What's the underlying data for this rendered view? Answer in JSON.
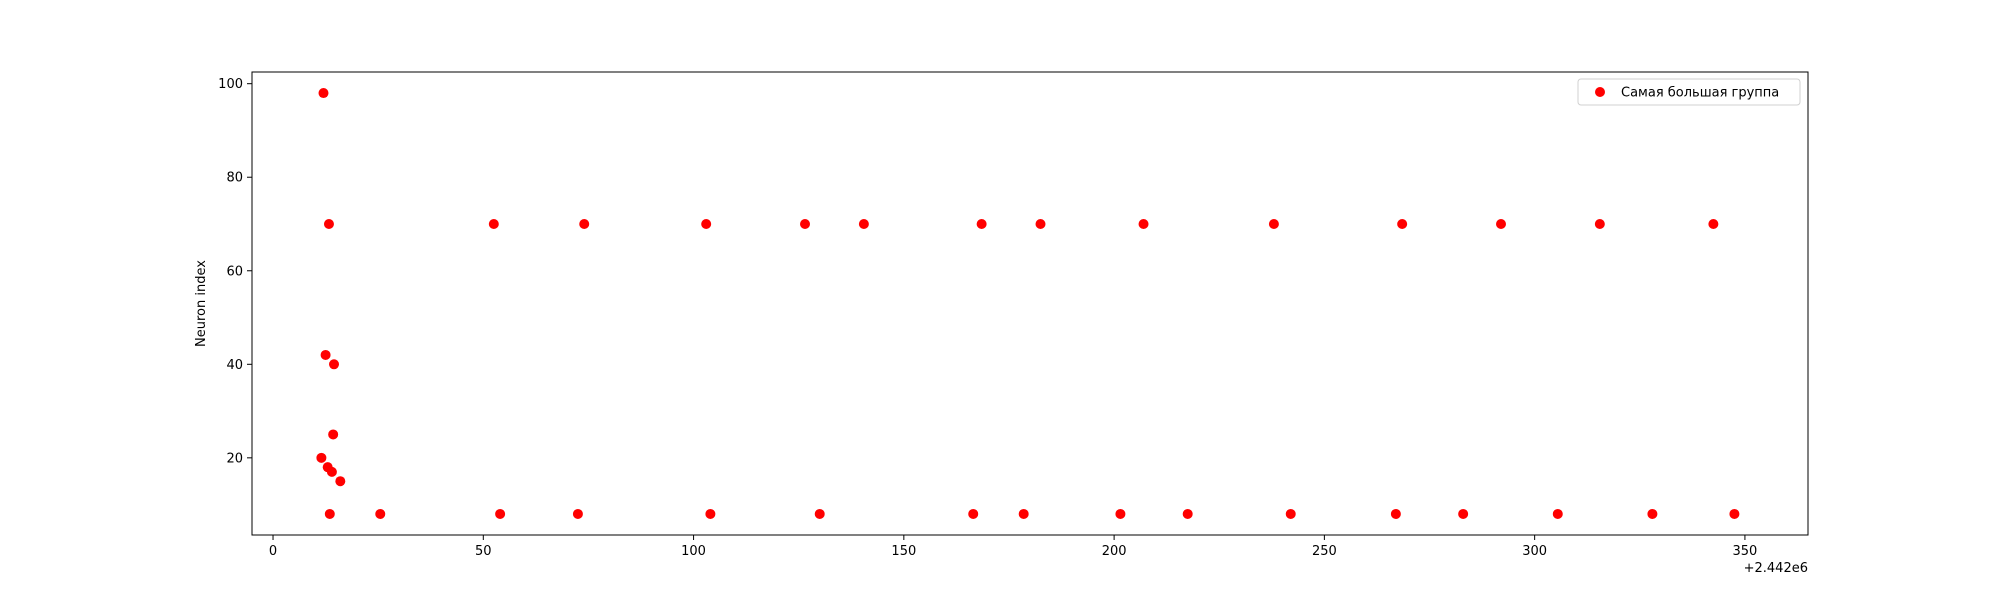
{
  "chart_data": {
    "type": "scatter",
    "title": "",
    "xlabel": "",
    "ylabel": "Neuron index",
    "x_offset_label": "+2.442e6",
    "xlim": [
      -5,
      365
    ],
    "ylim": [
      3.5,
      102.5
    ],
    "xticks": [
      0,
      50,
      100,
      150,
      200,
      250,
      300,
      350
    ],
    "yticks": [
      20,
      40,
      60,
      80,
      100
    ],
    "grid": false,
    "legend_position": "top-right",
    "series": [
      {
        "name": "Самая большая группа",
        "color": "#ff0000",
        "x": [
          12,
          13.3,
          52.5,
          74,
          103,
          126.5,
          140.5,
          168.5,
          182.5,
          207,
          238,
          268.5,
          292,
          315.5,
          342.5,
          12.5,
          14.5,
          14.3,
          11.5,
          13,
          14,
          16,
          13.5,
          25.5,
          54,
          72.5,
          104,
          130,
          166.5,
          178.5,
          201.5,
          217.5,
          242,
          267,
          283,
          305.5,
          328,
          347.5
        ],
        "y": [
          98,
          70,
          70,
          70,
          70,
          70,
          70,
          70,
          70,
          70,
          70,
          70,
          70,
          70,
          70,
          42,
          40,
          25,
          20,
          18,
          17,
          15,
          8,
          8,
          8,
          8,
          8,
          8,
          8,
          8,
          8,
          8,
          8,
          8,
          8,
          8,
          8,
          8
        ]
      }
    ]
  }
}
